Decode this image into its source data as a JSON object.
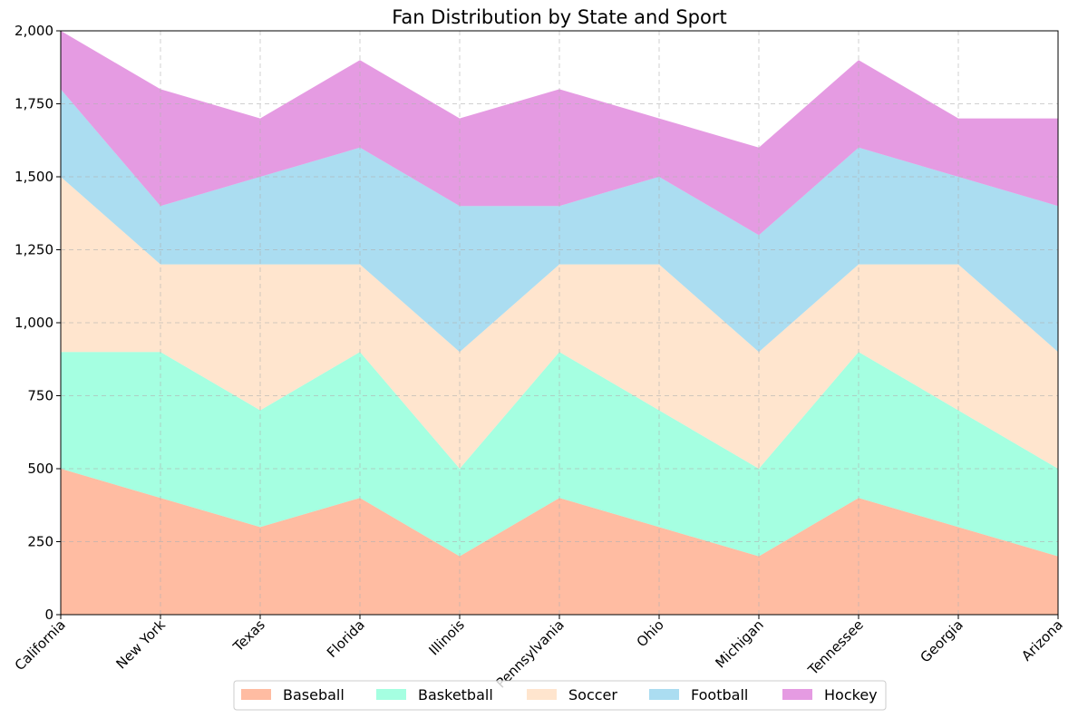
{
  "chart_data": {
    "type": "area",
    "title": "Fan Distribution by State and Sport",
    "xlabel": "",
    "ylabel": "",
    "categories": [
      "California",
      "New York",
      "Texas",
      "Florida",
      "Illinois",
      "Pennsylvania",
      "Ohio",
      "Michigan",
      "Tennessee",
      "Georgia",
      "Arizona"
    ],
    "stacked": true,
    "ylim": [
      0,
      2000
    ],
    "yticks": [
      "0",
      "250",
      "500",
      "750",
      "1,000",
      "1,250",
      "1,500",
      "1,750",
      "2,000"
    ],
    "grid": true,
    "legend_position": "bottom-center",
    "series": [
      {
        "name": "Baseball",
        "color": "#FFA07A",
        "values": [
          500,
          400,
          300,
          400,
          200,
          400,
          300,
          200,
          400,
          300,
          200
        ]
      },
      {
        "name": "Basketball",
        "color": "#7FFFD4",
        "values": [
          400,
          500,
          400,
          500,
          300,
          500,
          400,
          300,
          500,
          400,
          300
        ]
      },
      {
        "name": "Soccer",
        "color": "#FFDAB9",
        "values": [
          600,
          300,
          500,
          300,
          400,
          300,
          500,
          400,
          300,
          500,
          400
        ]
      },
      {
        "name": "Football",
        "color": "#87CEEB",
        "values": [
          300,
          200,
          300,
          400,
          500,
          200,
          300,
          400,
          400,
          300,
          500
        ]
      },
      {
        "name": "Hockey",
        "color": "#DA70D6",
        "values": [
          200,
          400,
          200,
          300,
          300,
          400,
          200,
          300,
          300,
          200,
          300
        ]
      }
    ]
  }
}
